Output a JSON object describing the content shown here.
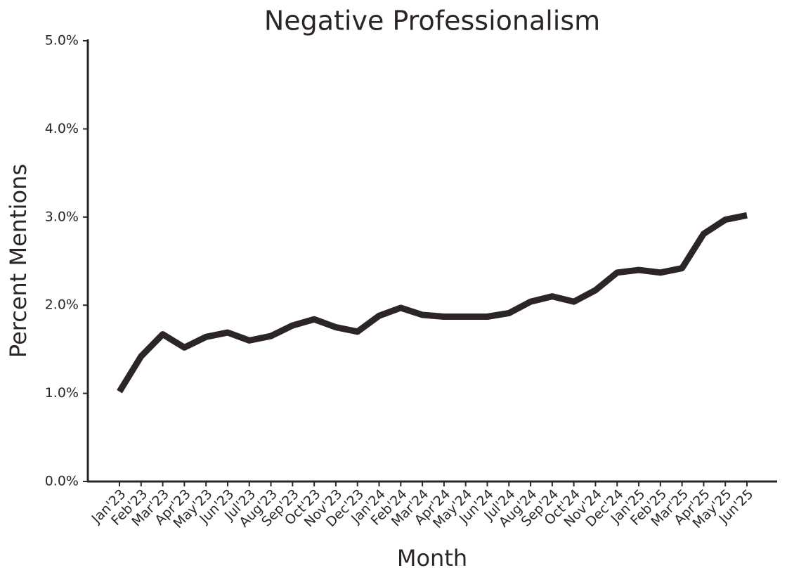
{
  "chart_data": {
    "type": "line",
    "title": "Negative Professionalism",
    "x_label": "Month",
    "y_label": "Percent Mentions",
    "categories": [
      "Jan'23",
      "Feb'23",
      "Mar'23",
      "Apr'23",
      "May'23",
      "Jun'23",
      "Jul'23",
      "Aug'23",
      "Sep'23",
      "Oct'23",
      "Nov'23",
      "Dec'23",
      "Jan'24",
      "Feb'24",
      "Mar'24",
      "Apr'24",
      "May'24",
      "Jun'24",
      "Jul'24",
      "Aug'24",
      "Sep'24",
      "Oct'24",
      "Nov'24",
      "Dec'24",
      "Jan'25",
      "Feb'25",
      "Mar'25",
      "Apr'25",
      "May'25",
      "Jun'25"
    ],
    "values": [
      1.02,
      1.42,
      1.67,
      1.52,
      1.64,
      1.69,
      1.6,
      1.65,
      1.77,
      1.84,
      1.75,
      1.7,
      1.88,
      1.97,
      1.89,
      1.87,
      1.87,
      1.87,
      1.91,
      2.04,
      2.1,
      2.04,
      2.17,
      2.37,
      2.4,
      2.37,
      2.42,
      2.81,
      2.97,
      3.02
    ],
    "color": "#2b2527",
    "ylim": [
      0,
      5
    ],
    "yticks": [
      {
        "value": 0,
        "label": "0.0%"
      },
      {
        "value": 1,
        "label": "1.0%"
      },
      {
        "value": 2,
        "label": "2.0%"
      },
      {
        "value": 3,
        "label": "3.0%"
      },
      {
        "value": 4,
        "label": "4.0%"
      },
      {
        "value": 5,
        "label": "5.0%"
      }
    ]
  }
}
